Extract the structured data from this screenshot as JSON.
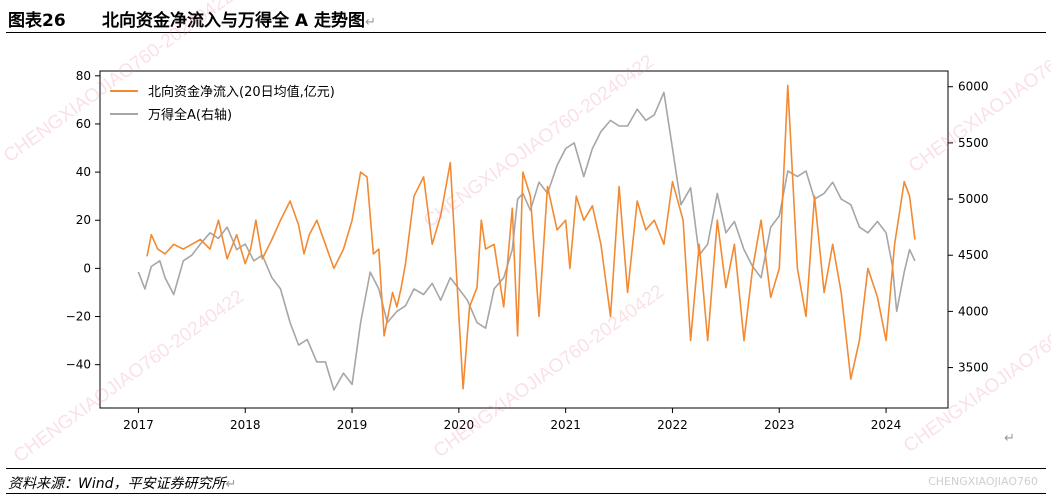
{
  "figure": {
    "number": "图表26",
    "title": "北向资金净流入与万得全 A 走势图",
    "return_mark": "↵",
    "source": "资料来源：Wind，平安证券研究所",
    "corner_mark": "CHENGXIAOJIAO760",
    "watermark_text": "CHENGXIAOJIAO760-20240422"
  },
  "chart_data": {
    "type": "line",
    "title": "",
    "xlabel": "",
    "x_ticks": [
      "2017",
      "2018",
      "2019",
      "2020",
      "2021",
      "2022",
      "2023",
      "2024"
    ],
    "xlim": [
      2016.64,
      2024.58
    ],
    "y_left": {
      "ticks": [
        "80",
        "60",
        "40",
        "20",
        "0",
        "−20",
        "−40"
      ],
      "ylim": [
        -58,
        82
      ]
    },
    "y_right": {
      "ticks": [
        "6000",
        "5500",
        "5000",
        "4500",
        "4000",
        "3500"
      ],
      "ylim": [
        3140,
        6140
      ]
    },
    "legend": {
      "placement": "top-left",
      "entries": [
        "北向资金净流入(20日均值,亿元)",
        "万得全A(右轴)"
      ]
    },
    "series": [
      {
        "name": "北向资金净流入(20日均值,亿元)",
        "axis": "left",
        "color": "#f28a33",
        "x": [
          2017.08,
          2017.12,
          2017.18,
          2017.25,
          2017.33,
          2017.42,
          2017.5,
          2017.58,
          2017.67,
          2017.75,
          2017.83,
          2017.92,
          2018.0,
          2018.05,
          2018.1,
          2018.16,
          2018.25,
          2018.33,
          2018.42,
          2018.5,
          2018.55,
          2018.6,
          2018.67,
          2018.75,
          2018.83,
          2018.92,
          2019.0,
          2019.08,
          2019.14,
          2019.2,
          2019.25,
          2019.3,
          2019.38,
          2019.42,
          2019.46,
          2019.5,
          2019.58,
          2019.67,
          2019.75,
          2019.83,
          2019.92,
          2019.96,
          2020.0,
          2020.04,
          2020.1,
          2020.17,
          2020.21,
          2020.25,
          2020.33,
          2020.42,
          2020.5,
          2020.55,
          2020.6,
          2020.67,
          2020.75,
          2020.83,
          2020.92,
          2021.0,
          2021.04,
          2021.1,
          2021.17,
          2021.25,
          2021.33,
          2021.42,
          2021.5,
          2021.58,
          2021.67,
          2021.75,
          2021.83,
          2021.92,
          2022.0,
          2022.1,
          2022.17,
          2022.21,
          2022.25,
          2022.33,
          2022.42,
          2022.5,
          2022.58,
          2022.67,
          2022.75,
          2022.83,
          2022.92,
          2023.0,
          2023.08,
          2023.17,
          2023.25,
          2023.33,
          2023.42,
          2023.5,
          2023.58,
          2023.67,
          2023.75,
          2023.83,
          2023.92,
          2024.0,
          2024.08,
          2024.17,
          2024.22,
          2024.27
        ],
        "y": [
          5,
          14,
          8,
          6,
          10,
          8,
          10,
          12,
          8,
          20,
          4,
          14,
          2,
          8,
          20,
          4,
          12,
          20,
          28,
          18,
          6,
          14,
          20,
          10,
          0,
          8,
          20,
          40,
          38,
          6,
          8,
          -28,
          -10,
          -16,
          -8,
          2,
          30,
          38,
          10,
          22,
          44,
          12,
          -20,
          -50,
          -16,
          -8,
          20,
          8,
          10,
          -16,
          25,
          -28,
          40,
          30,
          -20,
          34,
          16,
          20,
          0,
          30,
          20,
          26,
          10,
          -20,
          34,
          -10,
          28,
          16,
          20,
          10,
          36,
          20,
          -30,
          -10,
          10,
          -30,
          20,
          -8,
          10,
          -30,
          0,
          20,
          -12,
          0,
          76,
          0,
          -20,
          30,
          -10,
          10,
          -10,
          -46,
          -30,
          0,
          -12,
          -30,
          10,
          36,
          30,
          12
        ]
      },
      {
        "name": "万得全A(右轴)",
        "axis": "right",
        "color": "#a6a6a6",
        "x": [
          2017.0,
          2017.06,
          2017.12,
          2017.2,
          2017.25,
          2017.33,
          2017.42,
          2017.5,
          2017.58,
          2017.67,
          2017.75,
          2017.83,
          2017.92,
          2018.0,
          2018.08,
          2018.16,
          2018.25,
          2018.33,
          2018.42,
          2018.5,
          2018.58,
          2018.67,
          2018.75,
          2018.83,
          2018.92,
          2019.0,
          2019.08,
          2019.17,
          2019.25,
          2019.33,
          2019.42,
          2019.5,
          2019.58,
          2019.67,
          2019.75,
          2019.83,
          2019.92,
          2020.0,
          2020.08,
          2020.17,
          2020.25,
          2020.33,
          2020.42,
          2020.5,
          2020.55,
          2020.6,
          2020.67,
          2020.75,
          2020.83,
          2020.92,
          2021.0,
          2021.08,
          2021.17,
          2021.25,
          2021.33,
          2021.42,
          2021.5,
          2021.58,
          2021.67,
          2021.75,
          2021.83,
          2021.92,
          2022.0,
          2022.08,
          2022.17,
          2022.25,
          2022.33,
          2022.42,
          2022.5,
          2022.58,
          2022.67,
          2022.75,
          2022.83,
          2022.92,
          2023.0,
          2023.08,
          2023.17,
          2023.25,
          2023.33,
          2023.42,
          2023.5,
          2023.58,
          2023.67,
          2023.75,
          2023.83,
          2023.92,
          2024.0,
          2024.06,
          2024.1,
          2024.17,
          2024.22,
          2024.27
        ],
        "y": [
          4350,
          4200,
          4400,
          4450,
          4300,
          4150,
          4450,
          4500,
          4600,
          4700,
          4650,
          4750,
          4550,
          4600,
          4450,
          4500,
          4300,
          4200,
          3900,
          3700,
          3750,
          3550,
          3550,
          3300,
          3450,
          3350,
          3900,
          4350,
          4200,
          3900,
          4000,
          4050,
          4200,
          4150,
          4250,
          4100,
          4300,
          4200,
          4100,
          3900,
          3850,
          4200,
          4300,
          4550,
          5000,
          5050,
          4900,
          5150,
          5050,
          5300,
          5450,
          5500,
          5200,
          5450,
          5600,
          5700,
          5650,
          5650,
          5800,
          5700,
          5750,
          5950,
          5450,
          4950,
          5100,
          4500,
          4600,
          5050,
          4700,
          4800,
          4550,
          4400,
          4300,
          4750,
          4850,
          5250,
          5200,
          5250,
          5000,
          5050,
          5150,
          5000,
          4950,
          4750,
          4700,
          4800,
          4700,
          4400,
          4000,
          4350,
          4550,
          4450
        ]
      }
    ]
  }
}
